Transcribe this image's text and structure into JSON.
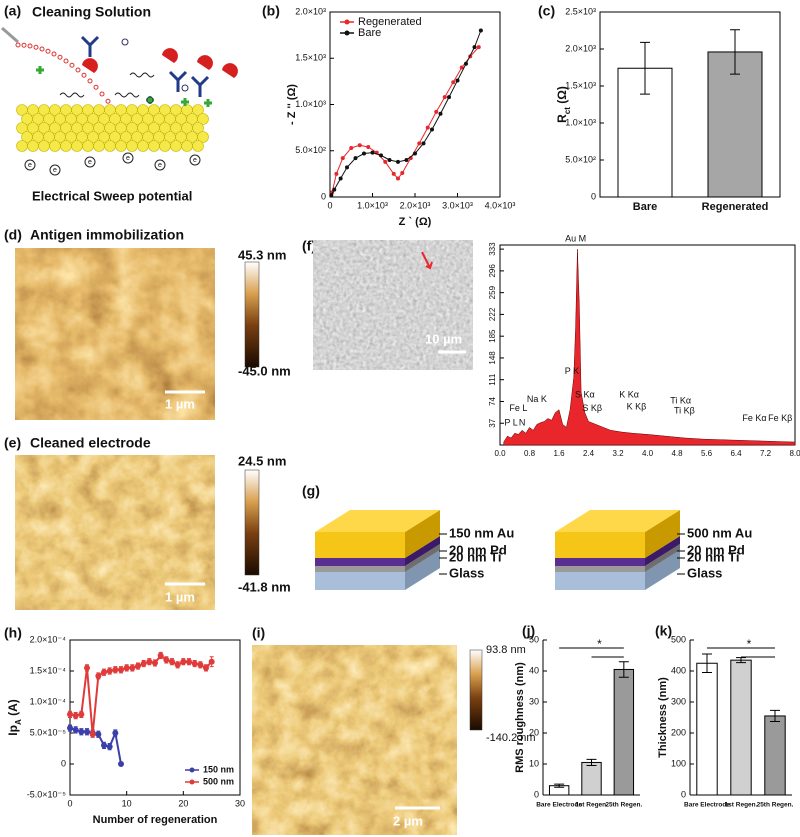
{
  "panels": {
    "a": {
      "label": "(a)",
      "title": "Cleaning Solution",
      "caption": "Electrical Sweep potential",
      "electron": "e"
    },
    "d": {
      "label": "(d)",
      "title": "Antigen immobilization",
      "scale_max": "45.3 nm",
      "scale_min": "-45.0 nm",
      "scalebar": "1 µm"
    },
    "e": {
      "label": "(e)",
      "title": "Cleaned electrode",
      "scale_max": "24.5 nm",
      "scale_min": "-41.8 nm",
      "scalebar": "1 µm"
    },
    "f": {
      "label": "(f)",
      "scalebar": "10 µm"
    },
    "g": {
      "label": "(g)",
      "left": [
        "150 nm Au",
        "20 nm Pd",
        "20 nm Ti",
        "Glass"
      ],
      "right": [
        "500 nm Au",
        "20 nm Pd",
        "20 nm Ti",
        "Glass"
      ]
    },
    "i": {
      "label": "(i)",
      "scale_max": "93.8 nm",
      "scale_min": "-140.2 nm",
      "scalebar": "2 µm"
    }
  },
  "chart_data": [
    {
      "type": "line",
      "panel": "(b)",
      "ylabel": "- Z '' (Ω)",
      "xlabel": "Z ` (Ω)",
      "legend": "upper left",
      "xlim": [
        0,
        4000
      ],
      "xticks": [
        0,
        {
          "value": 1000,
          "label": "1.0×10³"
        },
        {
          "value": 2000,
          "label": "2.0×10³"
        },
        {
          "value": 3000,
          "label": "3.0×10³"
        },
        {
          "value": 4000,
          "label": "4.0×10³"
        }
      ],
      "ylim": [
        0,
        2000
      ],
      "yticks": [
        0,
        {
          "value": 500,
          "label": "5.0×10²"
        },
        {
          "value": 1000,
          "label": "1.0×10³"
        },
        {
          "value": 1500,
          "label": "1.5×10³"
        },
        {
          "value": 2000,
          "label": "2.0×10³"
        }
      ],
      "series": [
        {
          "name": "Regenerated",
          "color": "#e8262c",
          "x": [
            50,
            150,
            300,
            500,
            700,
            900,
            1100,
            1300,
            1500,
            1600,
            1700,
            1900,
            2100,
            2300,
            2500,
            2700,
            2900,
            3100,
            3300,
            3500
          ],
          "values": [
            50,
            250,
            420,
            530,
            560,
            540,
            480,
            380,
            250,
            200,
            260,
            420,
            580,
            750,
            920,
            1080,
            1240,
            1400,
            1520,
            1620
          ]
        },
        {
          "name": "Bare",
          "color": "#111111",
          "x": [
            30,
            100,
            250,
            400,
            600,
            800,
            1000,
            1200,
            1400,
            1600,
            1800,
            2000,
            2200,
            2400,
            2600,
            2800,
            3000,
            3200,
            3400,
            3550
          ],
          "values": [
            20,
            80,
            200,
            320,
            420,
            470,
            480,
            450,
            400,
            380,
            400,
            470,
            580,
            730,
            900,
            1080,
            1260,
            1440,
            1620,
            1800
          ]
        }
      ]
    },
    {
      "type": "bar",
      "panel": "(c)",
      "ylabel_parts": [
        "R",
        "ct",
        " (Ω)"
      ],
      "categories": [
        "Bare",
        "Regenerated"
      ],
      "values": [
        1740,
        1960
      ],
      "errors": [
        350,
        300
      ],
      "colors": [
        "#ffffff",
        "#a6a6a6"
      ],
      "ylim": [
        0,
        2500
      ],
      "yticks": [
        0,
        {
          "value": 500,
          "label": "5.0×10²"
        },
        {
          "value": 1000,
          "label": "1.0×10³"
        },
        {
          "value": 1500,
          "label": "1.5×10³"
        },
        {
          "value": 2000,
          "label": "2.0×10³"
        },
        {
          "value": 2500,
          "label": "2.5×10³"
        }
      ]
    },
    {
      "type": "area",
      "color": "#e8262c",
      "xlim": [
        0,
        8
      ],
      "xticks": [
        {
          "value": 0,
          "label": "0.0"
        },
        0.8,
        1.6,
        2.4,
        3.2,
        {
          "value": 4,
          "label": "4.0"
        },
        4.8,
        5.6,
        6.4,
        7.2,
        {
          "value": 8,
          "label": "8.0"
        }
      ],
      "ylim": [
        0,
        340
      ],
      "yticks": [
        37,
        74,
        111,
        148,
        185,
        222,
        259,
        296,
        333
      ],
      "x": [
        0.1,
        0.2,
        0.3,
        0.4,
        0.5,
        0.6,
        0.7,
        0.8,
        0.9,
        1.0,
        1.1,
        1.2,
        1.3,
        1.4,
        1.5,
        1.6,
        1.7,
        1.8,
        1.9,
        2.0,
        2.05,
        2.1,
        2.15,
        2.2,
        2.3,
        2.4,
        2.6,
        2.8,
        3.0,
        3.3,
        3.6,
        4.0,
        4.5,
        5.0,
        5.5,
        6.0,
        6.5,
        7.0,
        7.5,
        8.0
      ],
      "values": [
        5,
        15,
        12,
        20,
        18,
        25,
        20,
        30,
        25,
        35,
        38,
        40,
        45,
        42,
        55,
        60,
        35,
        30,
        60,
        115,
        200,
        333,
        240,
        90,
        55,
        40,
        35,
        30,
        25,
        22,
        20,
        18,
        15,
        12,
        10,
        9,
        8,
        7,
        6,
        5
      ],
      "annotations": [
        "Au M",
        "P K",
        "S Kα",
        "S Kβ",
        "K Kα",
        "K Kβ",
        "Ti Kα",
        "Ti Kβ",
        "Fe Kα",
        "Fe Kβ",
        "Fe L",
        "Na K",
        "P L",
        "N"
      ]
    },
    {
      "type": "line",
      "panel": "(h)",
      "ylabel_parts": [
        "Ip",
        "A",
        " (A)"
      ],
      "xlabel": "Number of regeneration",
      "legend": "lower right",
      "xlim": [
        0,
        30
      ],
      "xticks": [
        0,
        10,
        20,
        30
      ],
      "ylim": [
        -5e-05,
        0.0002
      ],
      "yticks": [
        {
          "value": -5e-05,
          "label": "-5.0×10⁻⁵"
        },
        0,
        {
          "value": 5e-05,
          "label": "5.0×10⁻⁵"
        },
        {
          "value": 0.0001,
          "label": "1.0×10⁻⁴"
        },
        {
          "value": 0.00015,
          "label": "1.5×10⁻⁴"
        },
        {
          "value": 0.0002,
          "label": "2.0×10⁻⁴"
        }
      ],
      "series": [
        {
          "name": "150 nm",
          "color": "#3b3fa8",
          "x": [
            0,
            1,
            2,
            3,
            4,
            5,
            6,
            7,
            8,
            9
          ],
          "values": [
            5.8e-05,
            5.5e-05,
            5.2e-05,
            5.2e-05,
            5e-05,
            4.8e-05,
            3e-05,
            2.8e-05,
            5e-05,
            0
          ],
          "errors": [
            5e-06,
            5e-06,
            5e-06,
            5e-06,
            5e-06,
            5e-06,
            5e-06,
            5e-06,
            5e-06,
            3e-06
          ]
        },
        {
          "name": "500 nm",
          "color": "#e03a3a",
          "x": [
            0,
            1,
            2,
            3,
            4,
            5,
            6,
            7,
            8,
            9,
            10,
            11,
            12,
            13,
            14,
            15,
            16,
            17,
            18,
            19,
            20,
            21,
            22,
            23,
            24,
            25
          ],
          "values": [
            8e-05,
            7.8e-05,
            8e-05,
            0.000155,
            4.8e-05,
            0.000142,
            0.000148,
            0.00015,
            0.000152,
            0.000152,
            0.000155,
            0.000155,
            0.000158,
            0.000162,
            0.000165,
            0.000163,
            0.000175,
            0.000168,
            0.000165,
            0.00016,
            0.000165,
            0.000165,
            0.000162,
            0.00016,
            0.000155,
            0.000165
          ],
          "errors": [
            5e-06,
            5e-06,
            5e-06,
            5e-06,
            5e-06,
            5e-06,
            5e-06,
            5e-06,
            5e-06,
            5e-06,
            5e-06,
            5e-06,
            5e-06,
            5e-06,
            5e-06,
            5e-06,
            5e-06,
            5e-06,
            5e-06,
            5e-06,
            5e-06,
            5e-06,
            5e-06,
            5e-06,
            5e-06,
            8e-06
          ]
        }
      ]
    },
    {
      "type": "bar",
      "panel": "(j)",
      "ylabel": "RMS roughness (nm)",
      "categories": [
        "Bare Electrode",
        "1st Regen.",
        "25th Regen."
      ],
      "values": [
        3,
        10.5,
        40.5
      ],
      "errors": [
        0.5,
        1,
        2.5
      ],
      "colors": [
        "#ffffff",
        "#d0d0d0",
        "#9a9a9a"
      ],
      "significance": "*",
      "ylim": [
        0,
        50
      ],
      "yticks": [
        0,
        10,
        20,
        30,
        40,
        50
      ]
    },
    {
      "type": "bar",
      "panel": "(k)",
      "ylabel": "Thickness (nm)",
      "categories": [
        "Bare Electrode",
        "1st Regen.",
        "25th Regen."
      ],
      "values": [
        425,
        435,
        255
      ],
      "errors": [
        30,
        8,
        18
      ],
      "colors": [
        "#ffffff",
        "#d0d0d0",
        "#9a9a9a"
      ],
      "significance": "*",
      "ylim": [
        0,
        500
      ],
      "yticks": [
        0,
        100,
        200,
        300,
        400,
        500
      ]
    }
  ]
}
